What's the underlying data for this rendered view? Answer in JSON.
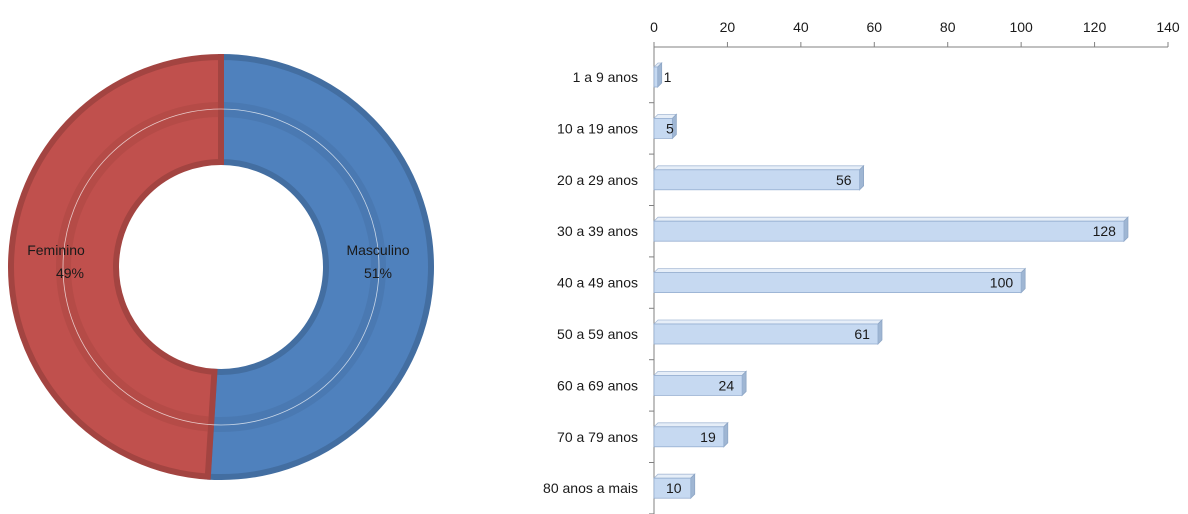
{
  "chart_data": [
    {
      "type": "pie",
      "variant": "donut",
      "slices": [
        {
          "name": "Masculino",
          "label": "Masculino",
          "percent_label": "51%",
          "value": 51,
          "color": "#4F81BD"
        },
        {
          "name": "Feminino",
          "label": "Feminino",
          "percent_label": "49%",
          "value": 49,
          "color": "#C0504D"
        }
      ]
    },
    {
      "type": "bar",
      "orientation": "horizontal",
      "categories": [
        "1 a 9 anos",
        "10 a 19 anos",
        "20 a 29 anos",
        "30 a 39 anos",
        "40 a 49 anos",
        "50 a 59 anos",
        "60 a 69 anos",
        "70 a 79 anos",
        "80 anos a mais"
      ],
      "values": [
        1,
        5,
        56,
        128,
        100,
        61,
        24,
        19,
        10
      ],
      "value_labels": [
        "1",
        "5",
        "56",
        "128",
        "100",
        "61",
        "24",
        "19",
        "10"
      ],
      "xlim": [
        0,
        140
      ],
      "xticks": [
        "0",
        "20",
        "40",
        "60",
        "80",
        "100",
        "120",
        "140"
      ],
      "x_axis_position": "top",
      "grid": false,
      "bar_color": "#C6D9F1"
    }
  ]
}
